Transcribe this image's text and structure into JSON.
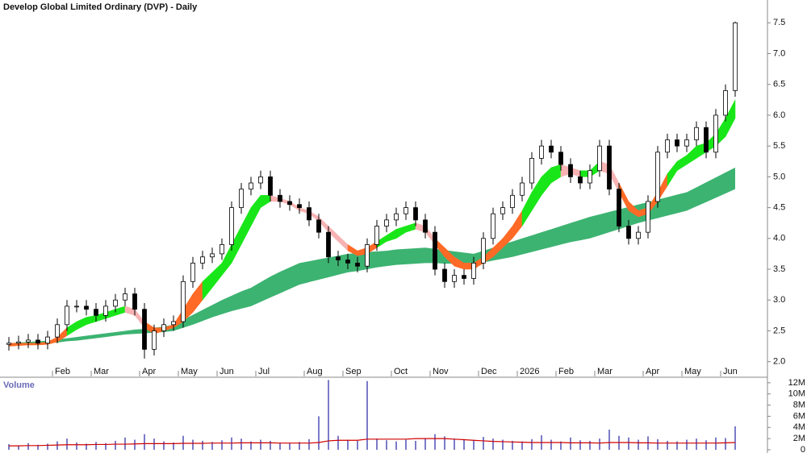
{
  "chart_data": [
    {
      "type": "candlestick",
      "title": "Develop Global Limited Ordinary (DVP) - Daily",
      "categories": [
        null,
        null,
        null,
        null,
        null,
        "Feb",
        null,
        null,
        null,
        "Mar",
        null,
        null,
        null,
        null,
        "Apr",
        null,
        null,
        null,
        "May",
        null,
        null,
        null,
        "Jun",
        null,
        null,
        null,
        "Jul",
        null,
        null,
        null,
        null,
        "Aug",
        null,
        null,
        null,
        "Sep",
        null,
        null,
        null,
        null,
        "Oct",
        null,
        null,
        null,
        "Nov",
        null,
        null,
        null,
        null,
        "Dec",
        null,
        null,
        null,
        "2026",
        null,
        null,
        null,
        "Feb",
        null,
        null,
        null,
        "Mar",
        null,
        null,
        null,
        null,
        "Apr",
        null,
        null,
        null,
        "May",
        null,
        null,
        null,
        "Jun",
        null
      ],
      "open": [
        2.28,
        2.3,
        2.32,
        2.35,
        2.3,
        2.4,
        2.6,
        2.9,
        2.9,
        2.85,
        2.75,
        2.9,
        3.0,
        3.1,
        2.85,
        2.2,
        2.5,
        2.6,
        2.65,
        3.3,
        3.6,
        3.7,
        3.75,
        3.9,
        4.5,
        4.8,
        4.9,
        5.0,
        4.7,
        4.6,
        4.55,
        4.5,
        4.3,
        4.1,
        3.7,
        3.65,
        3.6,
        3.55,
        3.9,
        4.2,
        4.3,
        4.4,
        4.5,
        4.3,
        4.1,
        3.5,
        3.3,
        3.4,
        3.35,
        3.6,
        4.0,
        4.4,
        4.5,
        4.7,
        4.9,
        5.3,
        5.5,
        5.4,
        5.2,
        5.0,
        4.9,
        5.1,
        5.5,
        4.8,
        4.2,
        4.0,
        4.1,
        4.6,
        5.4,
        5.6,
        5.5,
        5.6,
        5.8,
        5.4,
        6.0,
        6.4
      ],
      "high": [
        2.4,
        2.42,
        2.45,
        2.45,
        2.5,
        2.7,
        3.0,
        3.0,
        3.0,
        2.95,
        3.0,
        3.1,
        3.2,
        3.2,
        2.95,
        2.6,
        2.7,
        2.75,
        3.4,
        3.7,
        3.8,
        3.85,
        4.0,
        4.6,
        4.9,
        5.0,
        5.1,
        5.1,
        4.8,
        4.7,
        4.65,
        4.6,
        4.4,
        4.2,
        3.8,
        3.75,
        3.7,
        4.0,
        4.3,
        4.4,
        4.5,
        4.6,
        4.6,
        4.4,
        4.2,
        3.6,
        3.5,
        3.5,
        3.7,
        4.1,
        4.5,
        4.6,
        4.8,
        5.0,
        5.4,
        5.6,
        5.6,
        5.5,
        5.3,
        5.1,
        5.2,
        5.6,
        5.6,
        4.9,
        4.3,
        4.2,
        4.7,
        5.5,
        5.7,
        5.7,
        5.7,
        5.9,
        5.9,
        6.1,
        6.5,
        7.52
      ],
      "low": [
        2.18,
        2.2,
        2.22,
        2.2,
        2.2,
        2.3,
        2.5,
        2.8,
        2.75,
        2.65,
        2.65,
        2.8,
        2.9,
        2.75,
        2.05,
        2.1,
        2.4,
        2.5,
        2.55,
        3.2,
        3.5,
        3.6,
        3.65,
        3.8,
        4.4,
        4.7,
        4.8,
        4.6,
        4.5,
        4.45,
        4.4,
        4.2,
        4.0,
        3.6,
        3.55,
        3.5,
        3.45,
        3.45,
        3.8,
        4.1,
        4.2,
        4.3,
        4.2,
        4.0,
        3.4,
        3.2,
        3.2,
        3.25,
        3.25,
        3.5,
        3.9,
        4.3,
        4.4,
        4.6,
        4.8,
        5.2,
        5.3,
        5.1,
        4.9,
        4.8,
        4.8,
        5.0,
        4.7,
        4.1,
        3.9,
        3.9,
        4.0,
        4.5,
        5.3,
        5.4,
        5.4,
        5.5,
        5.3,
        5.3,
        5.9,
        6.3
      ],
      "close": [
        2.3,
        2.32,
        2.35,
        2.3,
        2.4,
        2.6,
        2.9,
        2.9,
        2.85,
        2.75,
        2.9,
        3.0,
        3.1,
        2.85,
        2.2,
        2.5,
        2.6,
        2.65,
        3.3,
        3.6,
        3.7,
        3.75,
        3.9,
        4.5,
        4.8,
        4.9,
        5.0,
        4.7,
        4.6,
        4.55,
        4.5,
        4.3,
        4.1,
        3.7,
        3.65,
        3.6,
        3.55,
        3.9,
        4.2,
        4.3,
        4.4,
        4.5,
        4.3,
        4.1,
        3.5,
        3.3,
        3.4,
        3.35,
        3.6,
        4.0,
        4.4,
        4.5,
        4.7,
        4.9,
        5.3,
        5.5,
        5.4,
        5.2,
        5.0,
        4.9,
        5.1,
        5.5,
        4.8,
        4.2,
        4.0,
        4.1,
        4.6,
        5.4,
        5.6,
        5.5,
        5.6,
        5.8,
        5.4,
        6.0,
        6.4,
        7.5
      ],
      "fast_band": {
        "upper": [
          2.3,
          2.3,
          2.3,
          2.3,
          2.32,
          2.4,
          2.55,
          2.65,
          2.72,
          2.75,
          2.8,
          2.85,
          2.9,
          2.85,
          2.65,
          2.55,
          2.55,
          2.6,
          2.85,
          3.1,
          3.3,
          3.45,
          3.6,
          3.9,
          4.2,
          4.5,
          4.7,
          4.7,
          4.65,
          4.6,
          4.5,
          4.45,
          4.35,
          4.2,
          4.05,
          3.9,
          3.8,
          3.85,
          3.95,
          4.05,
          4.15,
          4.2,
          4.25,
          4.2,
          4.0,
          3.85,
          3.7,
          3.6,
          3.6,
          3.7,
          3.85,
          4.0,
          4.2,
          4.45,
          4.75,
          5.0,
          5.15,
          5.2,
          5.15,
          5.1,
          5.1,
          5.25,
          5.2,
          4.9,
          4.6,
          4.45,
          4.5,
          4.75,
          5.05,
          5.25,
          5.35,
          5.5,
          5.55,
          5.7,
          5.95,
          6.25
        ],
        "lower": [
          2.25,
          2.26,
          2.27,
          2.27,
          2.28,
          2.32,
          2.42,
          2.52,
          2.6,
          2.65,
          2.7,
          2.75,
          2.8,
          2.75,
          2.55,
          2.45,
          2.5,
          2.55,
          2.65,
          2.8,
          3.0,
          3.2,
          3.4,
          3.6,
          3.9,
          4.2,
          4.5,
          4.6,
          4.6,
          4.55,
          4.45,
          4.4,
          4.28,
          4.1,
          3.95,
          3.8,
          3.72,
          3.75,
          3.85,
          3.95,
          4.0,
          4.1,
          4.15,
          4.1,
          3.9,
          3.7,
          3.55,
          3.5,
          3.5,
          3.6,
          3.7,
          3.85,
          4.0,
          4.2,
          4.45,
          4.7,
          4.9,
          5.0,
          5.05,
          5.0,
          5.0,
          5.1,
          5.05,
          4.75,
          4.45,
          4.35,
          4.4,
          4.6,
          4.85,
          5.1,
          5.2,
          5.3,
          5.4,
          5.5,
          5.65,
          5.95
        ]
      },
      "slow_band": {
        "upper": [
          2.3,
          2.31,
          2.32,
          2.33,
          2.34,
          2.36,
          2.38,
          2.4,
          2.42,
          2.44,
          2.46,
          2.48,
          2.5,
          2.52,
          2.53,
          2.55,
          2.57,
          2.6,
          2.68,
          2.76,
          2.84,
          2.92,
          3.0,
          3.07,
          3.14,
          3.2,
          3.29,
          3.38,
          3.46,
          3.53,
          3.6,
          3.63,
          3.66,
          3.69,
          3.72,
          3.75,
          3.76,
          3.78,
          3.79,
          3.8,
          3.82,
          3.83,
          3.84,
          3.85,
          3.83,
          3.81,
          3.79,
          3.77,
          3.75,
          3.8,
          3.85,
          3.9,
          3.95,
          4.0,
          4.05,
          4.1,
          4.15,
          4.2,
          4.25,
          4.3,
          4.35,
          4.39,
          4.43,
          4.47,
          4.51,
          4.55,
          4.59,
          4.63,
          4.67,
          4.71,
          4.75,
          4.83,
          4.91,
          4.99,
          5.07,
          5.15
        ],
        "lower": [
          2.26,
          2.27,
          2.28,
          2.29,
          2.3,
          2.31,
          2.33,
          2.34,
          2.36,
          2.38,
          2.4,
          2.42,
          2.44,
          2.45,
          2.46,
          2.47,
          2.48,
          2.5,
          2.55,
          2.6,
          2.66,
          2.72,
          2.77,
          2.82,
          2.86,
          2.9,
          2.97,
          3.04,
          3.11,
          3.18,
          3.25,
          3.29,
          3.33,
          3.37,
          3.41,
          3.45,
          3.47,
          3.5,
          3.53,
          3.55,
          3.57,
          3.58,
          3.59,
          3.6,
          3.6,
          3.59,
          3.59,
          3.58,
          3.58,
          3.61,
          3.64,
          3.67,
          3.7,
          3.74,
          3.78,
          3.82,
          3.86,
          3.9,
          3.94,
          3.97,
          4.0,
          4.05,
          4.1,
          4.15,
          4.2,
          4.25,
          4.29,
          4.33,
          4.37,
          4.41,
          4.45,
          4.52,
          4.59,
          4.66,
          4.73,
          4.8
        ]
      },
      "colors": {
        "rising": "#19e619",
        "falling": "#f7b3b3",
        "crossing": "#ff6a26",
        "slow_band": "#3cb371",
        "up_candle": "#ffffff",
        "down_candle": "#000000"
      },
      "ylim": [
        1.76,
        7.87
      ],
      "yticks": [
        {
          "value": 2,
          "label": "2.0"
        },
        2.5,
        {
          "value": 3,
          "label": "3.0"
        },
        3.5,
        {
          "value": 4,
          "label": "4.0"
        },
        4.5,
        {
          "value": 5,
          "label": "5.0"
        },
        5.5,
        {
          "value": 6,
          "label": "6.0"
        },
        6.5,
        {
          "value": 7,
          "label": "7.0"
        },
        7.5
      ]
    },
    {
      "type": "bar",
      "title": "Volume",
      "values": [
        1.0,
        0.8,
        1.2,
        0.9,
        1.1,
        1.5,
        2.0,
        1.3,
        1.1,
        1.4,
        1.2,
        1.6,
        2.2,
        1.8,
        2.8,
        2.0,
        1.5,
        1.3,
        2.5,
        1.8,
        1.6,
        1.4,
        1.7,
        2.2,
        2.0,
        1.5,
        1.8,
        1.6,
        1.3,
        1.2,
        1.4,
        1.9,
        6.0,
        12.5,
        2.5,
        1.8,
        1.6,
        12.3,
        2.0,
        1.7,
        1.5,
        1.8,
        1.6,
        2.1,
        2.8,
        2.4,
        2.0,
        1.9,
        1.7,
        2.3,
        2.0,
        1.8,
        1.6,
        1.5,
        1.9,
        2.6,
        1.8,
        1.5,
        2.2,
        1.7,
        1.6,
        2.0,
        3.6,
        2.5,
        2.2,
        1.8,
        2.4,
        1.9,
        1.6,
        1.5,
        1.8,
        2.0,
        1.7,
        2.2,
        2.1,
        4.2
      ],
      "average": [
        0.7,
        0.7,
        0.75,
        0.75,
        0.8,
        0.85,
        0.9,
        0.9,
        0.9,
        0.95,
        0.95,
        1.0,
        1.0,
        1.05,
        1.1,
        1.1,
        1.1,
        1.1,
        1.15,
        1.15,
        1.15,
        1.2,
        1.2,
        1.2,
        1.25,
        1.25,
        1.25,
        1.25,
        1.2,
        1.2,
        1.2,
        1.2,
        1.3,
        1.6,
        1.7,
        1.7,
        1.7,
        1.9,
        1.9,
        1.9,
        1.9,
        1.9,
        2.0,
        2.0,
        2.0,
        2.0,
        1.9,
        1.8,
        1.7,
        1.6,
        1.5,
        1.45,
        1.4,
        1.35,
        1.3,
        1.3,
        1.3,
        1.3,
        1.25,
        1.25,
        1.25,
        1.2,
        1.3,
        1.3,
        1.3,
        1.25,
        1.25,
        1.2,
        1.2,
        1.2,
        1.2,
        1.2,
        1.2,
        1.2,
        1.25,
        1.3
      ],
      "colors": {
        "bar": "#7b7bc9",
        "average": "#d00000"
      },
      "ylim": [
        0,
        12.7
      ],
      "yticks": [
        0,
        {
          "value": 2,
          "label": "2M"
        },
        {
          "value": 4,
          "label": "4M"
        },
        {
          "value": 6,
          "label": "6M"
        },
        {
          "value": 8,
          "label": "8M"
        },
        {
          "value": 10,
          "label": "10M"
        },
        {
          "value": 12,
          "label": "12M"
        }
      ]
    }
  ]
}
